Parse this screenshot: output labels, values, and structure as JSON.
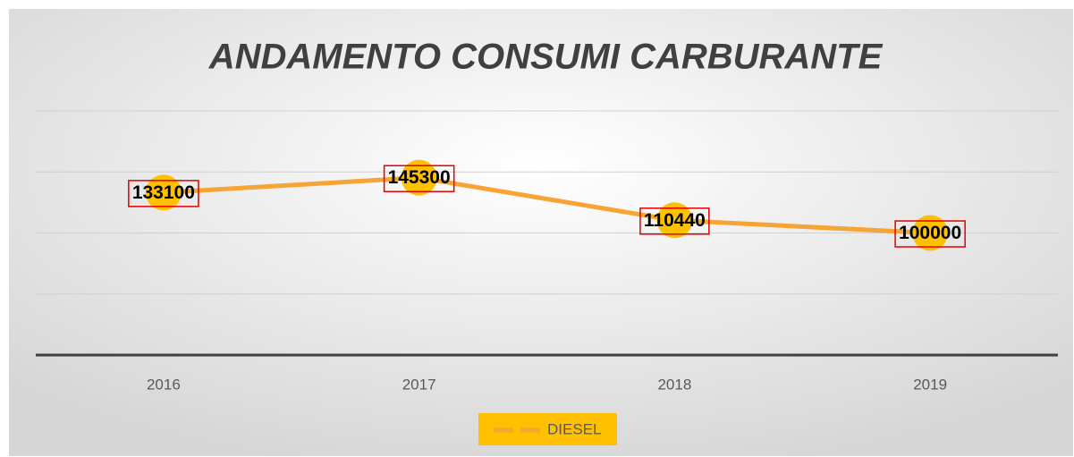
{
  "chart_data": {
    "type": "line",
    "title": "ANDAMENTO CONSUMI CARBURANTE",
    "categories": [
      "2016",
      "2017",
      "2018",
      "2019"
    ],
    "series": [
      {
        "name": "DIESEL",
        "color": "#f6a434",
        "marker_color": "#ffc000",
        "values": [
          133100,
          145300,
          110440,
          100000
        ]
      }
    ],
    "ylim": [
      0,
      200000
    ],
    "yticks": [
      0,
      50000,
      100000,
      150000,
      200000
    ],
    "grid": true,
    "legend": "bottom",
    "data_labels": true
  }
}
